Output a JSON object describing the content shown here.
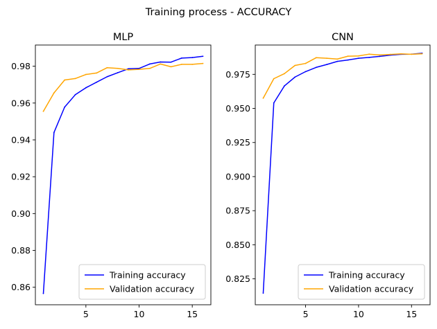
{
  "figure": {
    "suptitle": "Training process - ACCURACY"
  },
  "chart_data": [
    {
      "type": "line",
      "title": "MLP",
      "xlabel": "",
      "ylabel": "",
      "xlim": [
        0.25,
        16.75
      ],
      "ylim": [
        0.8505,
        0.9915
      ],
      "xticks": [
        5,
        10,
        15
      ],
      "yticks": [
        0.86,
        0.88,
        0.9,
        0.92,
        0.94,
        0.96,
        0.98
      ],
      "ytick_decimals": 2,
      "grid": false,
      "legend_position": "lower-right",
      "x": [
        1,
        2,
        3,
        4,
        5,
        6,
        7,
        8,
        9,
        10,
        11,
        12,
        13,
        14,
        15,
        16
      ],
      "series": [
        {
          "name": "Training accuracy",
          "color": "#0000ff",
          "values": [
            0.8566,
            0.944,
            0.9578,
            0.9645,
            0.9683,
            0.9713,
            0.9743,
            0.9765,
            0.9786,
            0.9788,
            0.9812,
            0.9823,
            0.9822,
            0.9844,
            0.9847,
            0.9854
          ]
        },
        {
          "name": "Validation accuracy",
          "color": "#ffa500",
          "values": [
            0.9555,
            0.9655,
            0.9725,
            0.9733,
            0.9755,
            0.9763,
            0.9792,
            0.9788,
            0.978,
            0.9783,
            0.9788,
            0.9812,
            0.9797,
            0.981,
            0.981,
            0.9815
          ]
        }
      ]
    },
    {
      "type": "line",
      "title": "CNN",
      "xlabel": "",
      "ylabel": "",
      "xlim": [
        0.25,
        16.75
      ],
      "ylim": [
        0.806,
        0.9965
      ],
      "xticks": [
        5,
        10,
        15
      ],
      "yticks": [
        0.825,
        0.85,
        0.875,
        0.9,
        0.925,
        0.95,
        0.975
      ],
      "ytick_decimals": 3,
      "grid": false,
      "legend_position": "lower-right",
      "x": [
        1,
        2,
        3,
        4,
        5,
        6,
        7,
        8,
        9,
        10,
        11,
        12,
        13,
        14,
        15,
        16
      ],
      "series": [
        {
          "name": "Training accuracy",
          "color": "#0000ff",
          "values": [
            0.8145,
            0.954,
            0.9665,
            0.973,
            0.977,
            0.9801,
            0.9822,
            0.9845,
            0.9855,
            0.9868,
            0.9874,
            0.9882,
            0.9891,
            0.9897,
            0.9898,
            0.9905
          ]
        },
        {
          "name": "Validation accuracy",
          "color": "#ffa500",
          "values": [
            0.9575,
            0.9718,
            0.9755,
            0.9815,
            0.983,
            0.9872,
            0.9868,
            0.9862,
            0.9883,
            0.9885,
            0.9898,
            0.9892,
            0.9896,
            0.99,
            0.9897,
            0.9901
          ]
        }
      ]
    }
  ]
}
